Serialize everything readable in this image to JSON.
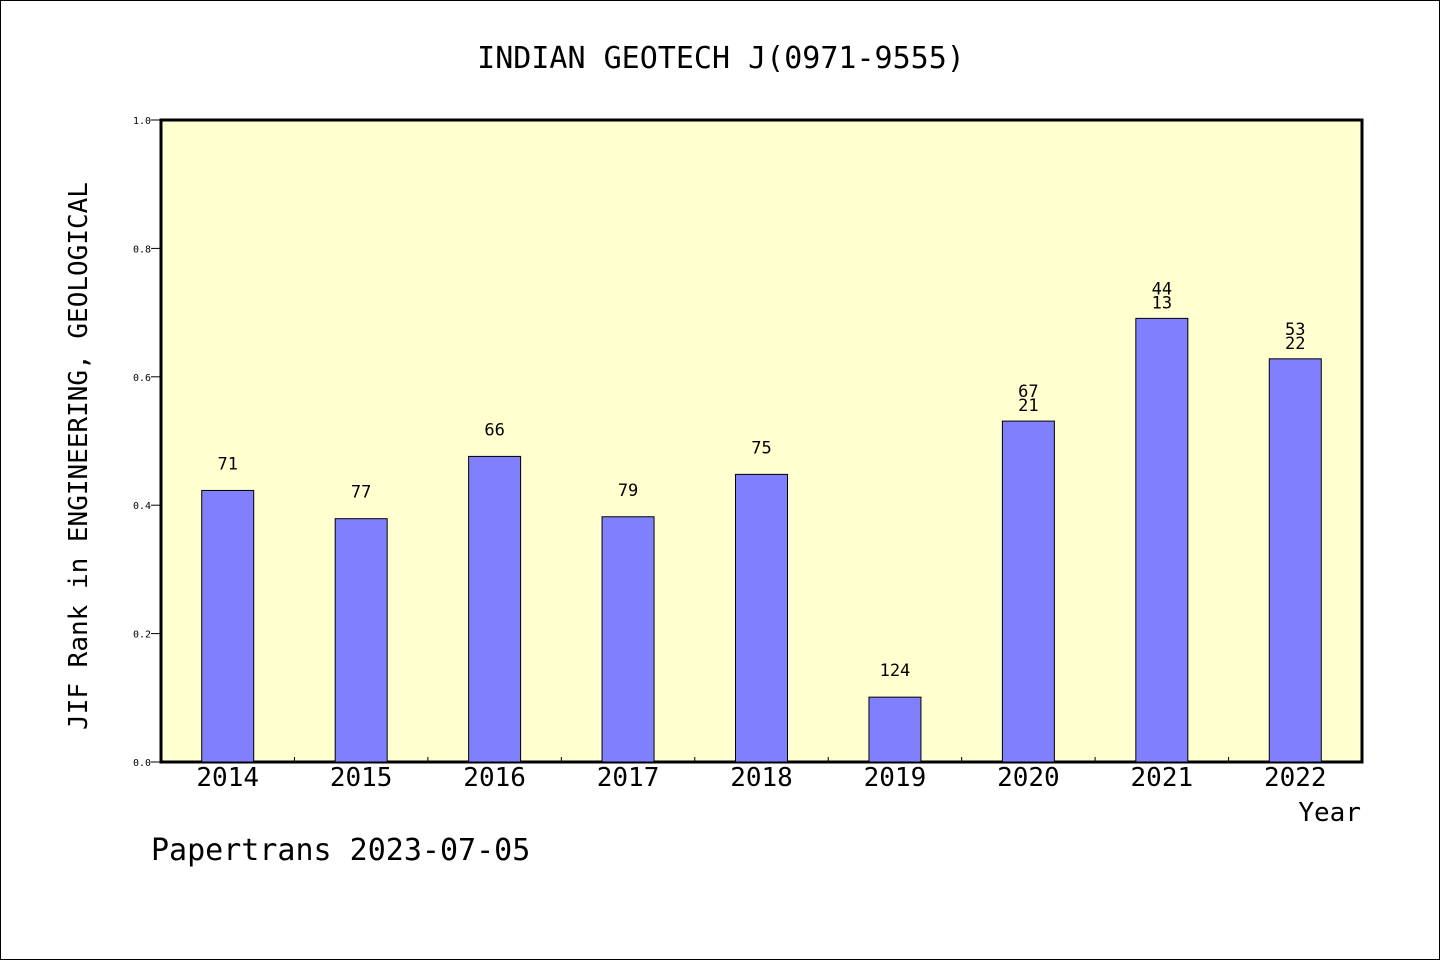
{
  "chart_data": {
    "type": "bar",
    "title": "INDIAN GEOTECH J(0971-9555)",
    "xlabel": "Year",
    "ylabel": "JIF Rank in ENGINEERING, GEOLOGICAL",
    "categories": [
      "2014",
      "2015",
      "2016",
      "2017",
      "2018",
      "2019",
      "2020",
      "2021",
      "2022"
    ],
    "values": [
      0.423,
      0.379,
      0.476,
      0.382,
      0.448,
      0.101,
      0.531,
      0.691,
      0.628
    ],
    "labels": [
      [
        "71"
      ],
      [
        "77"
      ],
      [
        "66"
      ],
      [
        "79"
      ],
      [
        "75"
      ],
      [
        "124"
      ],
      [
        "67",
        "21"
      ],
      [
        "44",
        "13"
      ],
      [
        "53",
        "22"
      ]
    ],
    "ylim": [
      0,
      1.0
    ],
    "yticks": [
      "0.0",
      "0.2",
      "0.4",
      "0.6",
      "0.8",
      "1.0"
    ],
    "grid": false,
    "colors": {
      "bar": "#8080ff",
      "plot_bg": "#ffffd0",
      "axis": "#000000"
    }
  },
  "footer": {
    "text": "Papertrans 2023-07-05"
  }
}
